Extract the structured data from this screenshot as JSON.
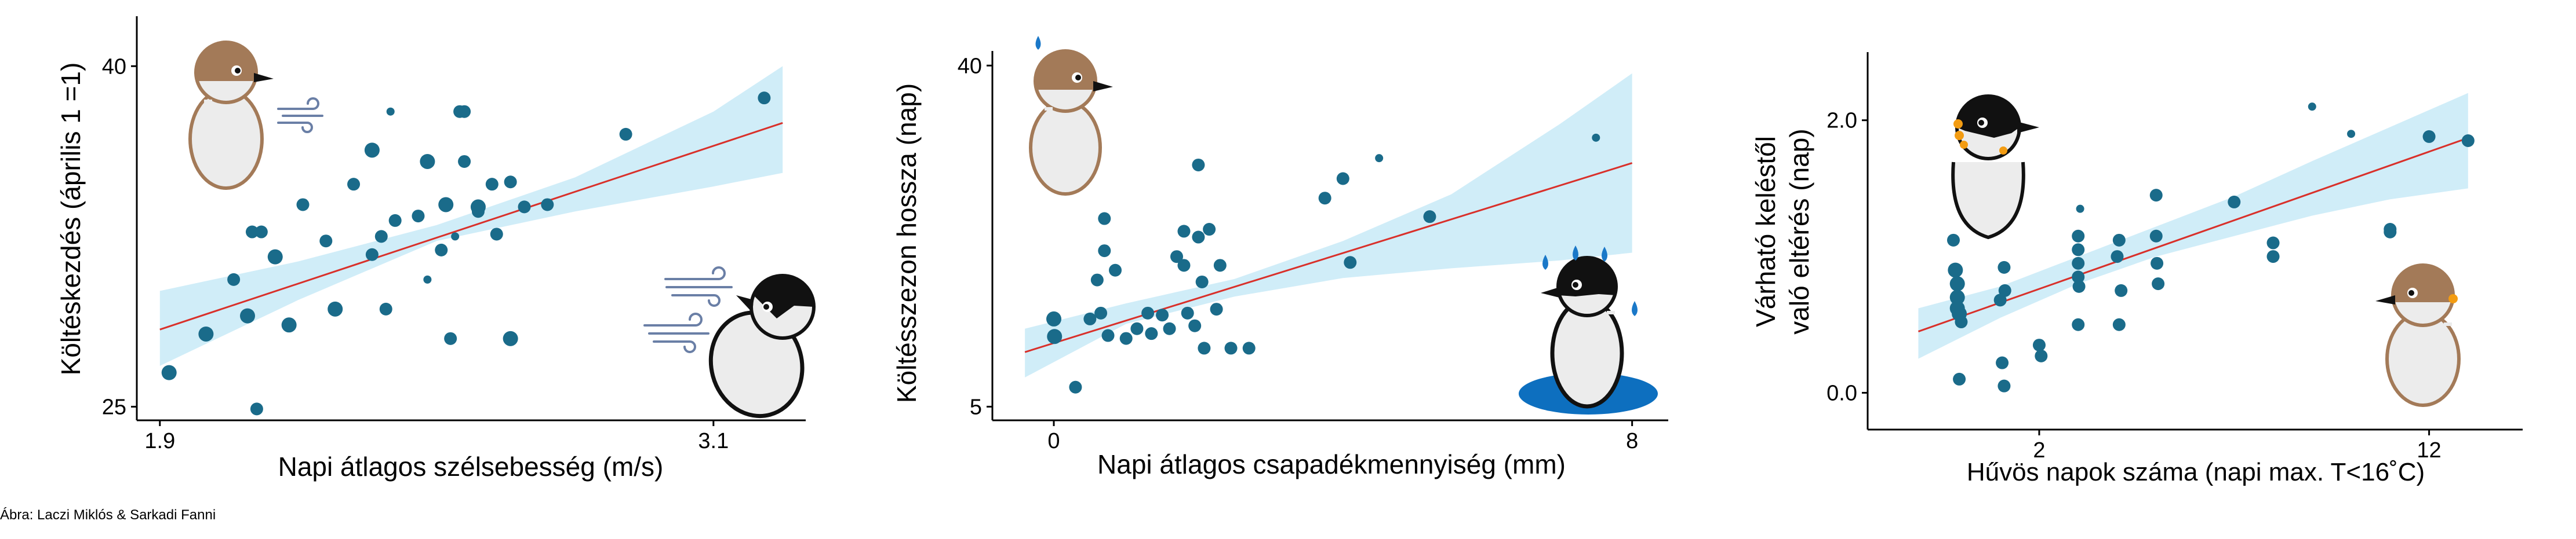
{
  "credit": "Ábra: Laczi Miklós & Sarkadi Fanni",
  "colors": {
    "band": "#c8eaf7",
    "trend": "#d9302a",
    "point": "#1a6b8a",
    "axis": "#000000",
    "bird_brown": "#a37a58",
    "bird_black": "#111111",
    "puddle": "#0d6fbf",
    "drop": "#1a78c8",
    "wind": "#6a7fa6",
    "orange": "#f39c12"
  },
  "chart_data": [
    {
      "type": "scatter",
      "title": "",
      "xlabel": "Napi átlagos szélsebesség (m/s)",
      "ylabel": "Költéskezdés (április 1 =1)",
      "xlim": [
        1.85,
        3.3
      ],
      "ylim": [
        24.4,
        42.2
      ],
      "xticks": [
        {
          "v": 1.9,
          "label": "1.9"
        },
        {
          "v": 3.1,
          "label": "3.1"
        }
      ],
      "yticks": [
        {
          "v": 25,
          "label": "25"
        },
        {
          "v": 40,
          "label": "40"
        }
      ],
      "grid": false,
      "legend": "none",
      "trend": {
        "x": [
          1.9,
          3.25
        ],
        "y": [
          28.4,
          37.5
        ]
      },
      "band": {
        "x": [
          1.9,
          2.2,
          2.5,
          2.8,
          3.1,
          3.25
        ],
        "lower": [
          26.8,
          29.7,
          32.3,
          33.6,
          34.7,
          35.3
        ],
        "upper": [
          30.1,
          31.4,
          33.0,
          35.1,
          38.0,
          40.0
        ]
      },
      "points": [
        {
          "x": 1.92,
          "y": 26.5,
          "s": 3
        },
        {
          "x": 2.0,
          "y": 28.2,
          "s": 3
        },
        {
          "x": 2.06,
          "y": 30.6,
          "s": 2
        },
        {
          "x": 2.09,
          "y": 29.0,
          "s": 3
        },
        {
          "x": 2.1,
          "y": 32.7,
          "s": 2
        },
        {
          "x": 2.12,
          "y": 32.7,
          "s": 2
        },
        {
          "x": 2.11,
          "y": 24.9,
          "s": 2
        },
        {
          "x": 2.15,
          "y": 31.6,
          "s": 3
        },
        {
          "x": 2.18,
          "y": 28.6,
          "s": 3
        },
        {
          "x": 2.21,
          "y": 33.9,
          "s": 2
        },
        {
          "x": 2.26,
          "y": 32.3,
          "s": 2
        },
        {
          "x": 2.28,
          "y": 29.3,
          "s": 3
        },
        {
          "x": 2.32,
          "y": 34.8,
          "s": 2
        },
        {
          "x": 2.36,
          "y": 31.7,
          "s": 2
        },
        {
          "x": 2.36,
          "y": 36.3,
          "s": 3
        },
        {
          "x": 2.38,
          "y": 32.5,
          "s": 2
        },
        {
          "x": 2.39,
          "y": 29.3,
          "s": 2
        },
        {
          "x": 2.4,
          "y": 38.0,
          "s": 1
        },
        {
          "x": 2.41,
          "y": 33.2,
          "s": 2
        },
        {
          "x": 2.46,
          "y": 33.4,
          "s": 2
        },
        {
          "x": 2.48,
          "y": 30.6,
          "s": 1
        },
        {
          "x": 2.48,
          "y": 35.8,
          "s": 3
        },
        {
          "x": 2.52,
          "y": 33.9,
          "s": 3
        },
        {
          "x": 2.51,
          "y": 31.9,
          "s": 2
        },
        {
          "x": 2.53,
          "y": 28.0,
          "s": 2
        },
        {
          "x": 2.54,
          "y": 32.5,
          "s": 1
        },
        {
          "x": 2.55,
          "y": 38.0,
          "s": 2
        },
        {
          "x": 2.56,
          "y": 38.0,
          "s": 2
        },
        {
          "x": 2.56,
          "y": 35.8,
          "s": 2
        },
        {
          "x": 2.59,
          "y": 33.8,
          "s": 3
        },
        {
          "x": 2.59,
          "y": 33.6,
          "s": 2
        },
        {
          "x": 2.62,
          "y": 34.8,
          "s": 2
        },
        {
          "x": 2.63,
          "y": 32.6,
          "s": 2
        },
        {
          "x": 2.66,
          "y": 34.9,
          "s": 2
        },
        {
          "x": 2.66,
          "y": 28.0,
          "s": 3
        },
        {
          "x": 2.69,
          "y": 33.8,
          "s": 2
        },
        {
          "x": 2.74,
          "y": 33.9,
          "s": 2
        },
        {
          "x": 2.91,
          "y": 37.0,
          "s": 2
        },
        {
          "x": 3.21,
          "y": 38.6,
          "s": 2
        }
      ]
    },
    {
      "type": "scatter",
      "title": "",
      "xlabel": "Napi átlagos csapadékmennyiség (mm)",
      "ylabel": "Költésszezon hossza (nap)",
      "xlim": [
        -0.85,
        8.5
      ],
      "ylim": [
        3.6,
        41.5
      ],
      "xticks": [
        {
          "v": 0,
          "label": "0"
        },
        {
          "v": 8,
          "label": "8"
        }
      ],
      "yticks": [
        {
          "v": 5,
          "label": "5"
        },
        {
          "v": 40,
          "label": "40"
        }
      ],
      "grid": false,
      "legend": "none",
      "trend": {
        "x": [
          -0.4,
          8.0
        ],
        "y": [
          10.6,
          30.0
        ]
      },
      "band": {
        "x": [
          -0.4,
          1.0,
          2.5,
          4.0,
          5.5,
          7.0,
          8.0
        ],
        "lower": [
          8.0,
          13.5,
          16.3,
          18.2,
          19.2,
          20.0,
          20.8
        ],
        "upper": [
          13.0,
          15.6,
          18.1,
          22.0,
          26.8,
          34.0,
          39.2
        ]
      },
      "points": [
        {
          "x": 0.0,
          "y": 14.0,
          "s": 3
        },
        {
          "x": 0.01,
          "y": 12.2,
          "s": 3
        },
        {
          "x": 0.3,
          "y": 7.0,
          "s": 2
        },
        {
          "x": 0.5,
          "y": 14.0,
          "s": 2
        },
        {
          "x": 0.6,
          "y": 18.0,
          "s": 2
        },
        {
          "x": 0.65,
          "y": 14.6,
          "s": 2
        },
        {
          "x": 0.7,
          "y": 24.3,
          "s": 2
        },
        {
          "x": 0.7,
          "y": 21.0,
          "s": 2
        },
        {
          "x": 0.75,
          "y": 12.3,
          "s": 2
        },
        {
          "x": 0.85,
          "y": 19.0,
          "s": 2
        },
        {
          "x": 1.0,
          "y": 12.0,
          "s": 2
        },
        {
          "x": 1.15,
          "y": 13.0,
          "s": 2
        },
        {
          "x": 1.3,
          "y": 14.6,
          "s": 2
        },
        {
          "x": 1.35,
          "y": 12.5,
          "s": 2
        },
        {
          "x": 1.5,
          "y": 14.4,
          "s": 2
        },
        {
          "x": 1.6,
          "y": 13.0,
          "s": 2
        },
        {
          "x": 1.7,
          "y": 20.4,
          "s": 2
        },
        {
          "x": 1.8,
          "y": 23.0,
          "s": 2
        },
        {
          "x": 1.8,
          "y": 19.5,
          "s": 2
        },
        {
          "x": 1.85,
          "y": 14.6,
          "s": 2
        },
        {
          "x": 1.95,
          "y": 13.3,
          "s": 2
        },
        {
          "x": 2.0,
          "y": 29.8,
          "s": 2
        },
        {
          "x": 2.0,
          "y": 22.4,
          "s": 2
        },
        {
          "x": 2.05,
          "y": 17.8,
          "s": 2
        },
        {
          "x": 2.08,
          "y": 11.0,
          "s": 2
        },
        {
          "x": 2.15,
          "y": 23.2,
          "s": 2
        },
        {
          "x": 2.25,
          "y": 15.0,
          "s": 2
        },
        {
          "x": 2.3,
          "y": 19.5,
          "s": 2
        },
        {
          "x": 2.45,
          "y": 11.0,
          "s": 2
        },
        {
          "x": 2.7,
          "y": 11.0,
          "s": 2
        },
        {
          "x": 3.75,
          "y": 26.4,
          "s": 2
        },
        {
          "x": 4.0,
          "y": 28.4,
          "s": 2
        },
        {
          "x": 4.1,
          "y": 19.8,
          "s": 2
        },
        {
          "x": 4.5,
          "y": 30.5,
          "s": 1
        },
        {
          "x": 5.2,
          "y": 24.5,
          "s": 2
        },
        {
          "x": 7.5,
          "y": 32.6,
          "s": 1
        }
      ]
    },
    {
      "type": "scatter",
      "title": "",
      "xlabel": "Hűvös napok száma (napi max. T<16˚C)",
      "ylabel": "Várható keléstől való eltérés (nap)",
      "xlim": [
        -2.4,
        14.4
      ],
      "ylim": [
        -0.27,
        2.5
      ],
      "xticks": [
        {
          "v": 2,
          "label": "2"
        },
        {
          "v": 12,
          "label": "12"
        }
      ],
      "yticks": [
        {
          "v": 0.0,
          "label": "0.0"
        },
        {
          "v": 2.0,
          "label": "2.0"
        }
      ],
      "grid": false,
      "legend": "none",
      "trend": {
        "x": [
          -1.1,
          13.0
        ],
        "y": [
          0.45,
          1.87
        ]
      },
      "band": {
        "x": [
          -1.1,
          1.0,
          3.0,
          5.0,
          7.0,
          9.0,
          11.0,
          13.0
        ],
        "lower": [
          0.25,
          0.55,
          0.8,
          1.0,
          1.15,
          1.3,
          1.42,
          1.5
        ],
        "upper": [
          0.62,
          0.78,
          1.0,
          1.22,
          1.44,
          1.7,
          1.95,
          2.2
        ]
      },
      "points": [
        {
          "x": -0.2,
          "y": 1.12,
          "s": 2
        },
        {
          "x": -0.15,
          "y": 0.9,
          "s": 3
        },
        {
          "x": -0.1,
          "y": 0.8,
          "s": 3
        },
        {
          "x": -0.1,
          "y": 0.7,
          "s": 3
        },
        {
          "x": -0.1,
          "y": 0.62,
          "s": 3
        },
        {
          "x": -0.05,
          "y": 0.58,
          "s": 3
        },
        {
          "x": -0.05,
          "y": 0.1,
          "s": 2
        },
        {
          "x": 0.0,
          "y": 0.52,
          "s": 2
        },
        {
          "x": 1.0,
          "y": 0.68,
          "s": 2
        },
        {
          "x": 1.1,
          "y": 0.92,
          "s": 2
        },
        {
          "x": 1.05,
          "y": 0.22,
          "s": 2
        },
        {
          "x": 1.1,
          "y": 0.05,
          "s": 2
        },
        {
          "x": 1.12,
          "y": 0.75,
          "s": 2
        },
        {
          "x": 2.0,
          "y": 0.35,
          "s": 2
        },
        {
          "x": 2.05,
          "y": 0.27,
          "s": 2
        },
        {
          "x": 3.0,
          "y": 1.15,
          "s": 2
        },
        {
          "x": 3.0,
          "y": 1.05,
          "s": 2
        },
        {
          "x": 3.0,
          "y": 0.95,
          "s": 2
        },
        {
          "x": 3.0,
          "y": 0.85,
          "s": 2
        },
        {
          "x": 3.02,
          "y": 0.78,
          "s": 2
        },
        {
          "x": 3.0,
          "y": 0.5,
          "s": 2
        },
        {
          "x": 3.05,
          "y": 1.35,
          "s": 1
        },
        {
          "x": 4.0,
          "y": 1.0,
          "s": 2
        },
        {
          "x": 4.05,
          "y": 1.12,
          "s": 2
        },
        {
          "x": 4.1,
          "y": 0.75,
          "s": 2
        },
        {
          "x": 4.05,
          "y": 0.5,
          "s": 2
        },
        {
          "x": 5.0,
          "y": 1.45,
          "s": 2
        },
        {
          "x": 5.0,
          "y": 1.15,
          "s": 2
        },
        {
          "x": 5.02,
          "y": 0.95,
          "s": 2
        },
        {
          "x": 5.05,
          "y": 0.8,
          "s": 2
        },
        {
          "x": 7.0,
          "y": 1.4,
          "s": 2
        },
        {
          "x": 8.0,
          "y": 1.1,
          "s": 2
        },
        {
          "x": 8.0,
          "y": 1.0,
          "s": 2
        },
        {
          "x": 9.0,
          "y": 2.1,
          "s": 1
        },
        {
          "x": 10.0,
          "y": 1.9,
          "s": 1
        },
        {
          "x": 11.0,
          "y": 1.2,
          "s": 2
        },
        {
          "x": 11.0,
          "y": 1.18,
          "s": 2
        },
        {
          "x": 12.0,
          "y": 1.88,
          "s": 2
        },
        {
          "x": 13.0,
          "y": 1.85,
          "s": 2
        }
      ]
    }
  ]
}
